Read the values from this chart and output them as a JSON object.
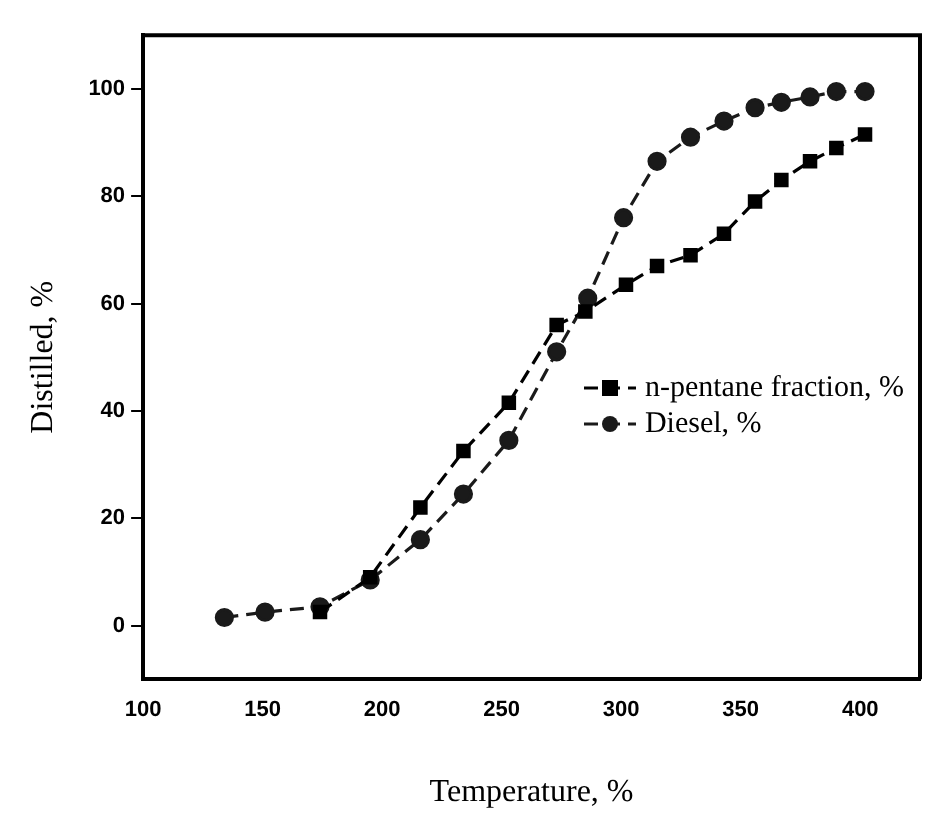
{
  "chart_data": {
    "type": "line",
    "xlabel": "Temperature, %",
    "ylabel": "Distilled, %",
    "xlim": [
      100,
      425
    ],
    "xticks": [
      100,
      150,
      200,
      250,
      300,
      350,
      400
    ],
    "ylim": [
      -10,
      110
    ],
    "yticks": [
      0,
      20,
      40,
      60,
      80,
      100
    ],
    "grid": false,
    "legend": "right",
    "line_style": "dashed",
    "series": [
      {
        "name": "n-pentane fraction, %",
        "color": "#000000",
        "marker": "square",
        "x": [
          174,
          195,
          216,
          234,
          253,
          273,
          285,
          302,
          315,
          329,
          343,
          356,
          367,
          379,
          390,
          402
        ],
        "values": [
          2.5,
          9,
          22,
          32.5,
          41.5,
          56,
          58.5,
          63.5,
          67,
          69,
          73,
          79,
          83,
          86.5,
          89,
          91.5
        ]
      },
      {
        "name": "Diesel, %",
        "color": "#1a1a1a",
        "marker": "circle",
        "x": [
          134,
          151,
          174,
          195,
          216,
          234,
          253,
          273,
          286,
          301,
          315,
          329,
          343,
          356,
          367,
          379,
          390,
          402
        ],
        "values": [
          1.5,
          2.5,
          3.5,
          8.5,
          16,
          24.5,
          34.5,
          51,
          61,
          76,
          86.5,
          91,
          94,
          96.5,
          97.5,
          98.5,
          99.5,
          99.5
        ]
      }
    ]
  }
}
